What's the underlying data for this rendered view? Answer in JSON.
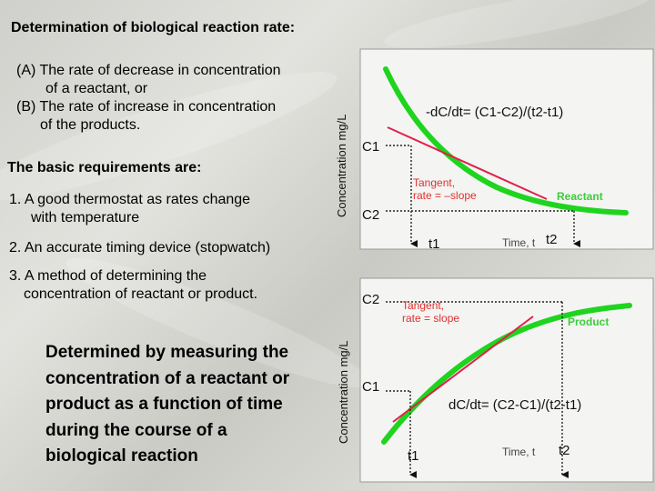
{
  "title": "Determination of biological reaction rate:",
  "intro": {
    "line_a1": "(A)  The rate of decrease in concentration",
    "line_a2": "of a reactant, or",
    "line_b1": "(B)  The rate of increase in concentration",
    "line_b2": "of the products."
  },
  "requirements": {
    "heading": "The basic requirements are:",
    "item1_l1": "1.  A good thermostat as rates change",
    "item1_l2": "with temperature",
    "item2": "2. An accurate timing device (stopwatch)",
    "item3_l1": "3. A method of determining the",
    "item3_l2": "concentration of reactant or product."
  },
  "summary": {
    "line1": "Determined by measuring the",
    "line2": "concentration of a reactant or",
    "line3": "product as a function of time",
    "line4": "during the course of a",
    "line5": "biological reaction"
  },
  "colors": {
    "curve": "#1fd41f",
    "tangent": "#e0204a",
    "dotted": "#222222",
    "label_red": "#e03030",
    "label_green": "#3dcc3d",
    "panel_bg": "#f4f4f2"
  },
  "chart_data": [
    {
      "type": "line",
      "ylabel": "Concentration mg/L",
      "xlabel": "Time, t",
      "formula": "-dC/dt= (C1-C2)/(t2-t1)",
      "tangent_label_1": "Tangent,",
      "tangent_label_2": "rate = –slope",
      "series_label": "Reactant",
      "c_upper": "C1",
      "c_lower": "C2",
      "t_left": "t1",
      "t_right": "t2"
    },
    {
      "type": "line",
      "ylabel": "Concentration mg/L",
      "xlabel": "Time, t",
      "formula": "dC/dt= (C2-C1)/(t2-t1)",
      "tangent_label_1": "Tangent,",
      "tangent_label_2": "rate = slope",
      "series_label": "Product",
      "c_upper": "C2",
      "c_lower": "C1",
      "t_left": "t1",
      "t_right": "t2"
    }
  ]
}
